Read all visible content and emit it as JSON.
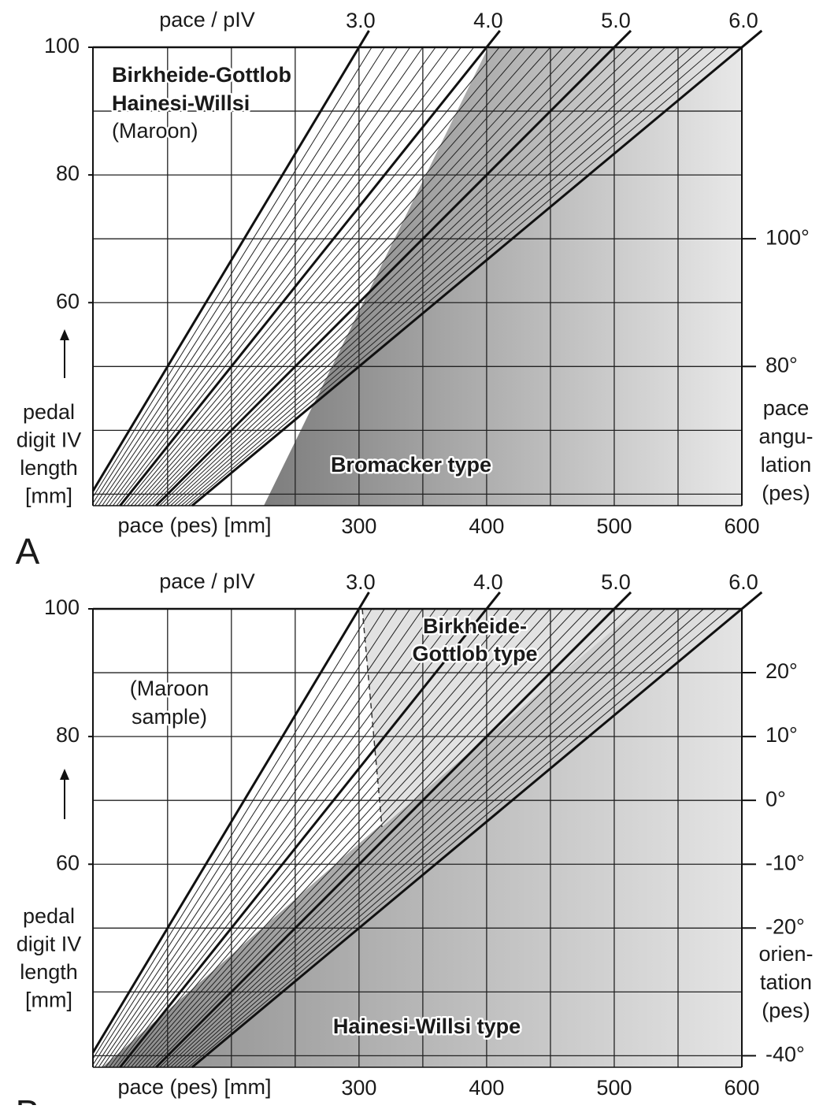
{
  "chart_data": [
    {
      "type": "line",
      "panel_label": "A",
      "top_axis_title": "pace / pIV",
      "ratio_lines": [
        {
          "value": 3,
          "label": "3.0"
        },
        {
          "value": 4,
          "label": "4.0"
        },
        {
          "value": 5,
          "label": "5.0"
        },
        {
          "value": 6,
          "label": "6.0"
        }
      ],
      "xlabel": "pace (pes) [mm]",
      "ylabel": [
        "pedal",
        "digit IV",
        "length",
        "[mm]"
      ],
      "y2label": [
        "pace",
        "angu-",
        "lation",
        "(pes)"
      ],
      "xlim": [
        91.5,
        600
      ],
      "ylim": [
        28.2,
        100
      ],
      "y2lim": [
        58.2,
        130
      ],
      "xticks": [
        300,
        400,
        500,
        600
      ],
      "yticks": [
        60,
        80,
        100
      ],
      "y2ticks": [
        {
          "value": 80,
          "label": "80°"
        },
        {
          "value": 100,
          "label": "100°"
        }
      ],
      "xgrid": [
        150,
        200,
        250,
        300,
        350,
        400,
        450,
        500,
        550
      ],
      "ygrid": [
        30,
        40,
        50,
        60,
        70,
        80,
        90
      ],
      "annotations": [
        "Birkheide-Gottlob",
        "Hainesi-Willsi",
        "(Maroon)",
        "Bromacker type"
      ]
    },
    {
      "type": "line",
      "panel_label": "B",
      "top_axis_title": "pace / pIV",
      "ratio_lines": [
        {
          "value": 3,
          "label": "3.0"
        },
        {
          "value": 4,
          "label": "4.0"
        },
        {
          "value": 5,
          "label": "5.0"
        },
        {
          "value": 6,
          "label": "6.0"
        }
      ],
      "xlabel": "pace (pes) [mm]",
      "ylabel": [
        "pedal",
        "digit IV",
        "length",
        "[mm]"
      ],
      "y2label": [
        "orien-",
        "tation",
        "(pes)"
      ],
      "xlim": [
        91.5,
        600
      ],
      "ylim": [
        28.2,
        100
      ],
      "y2lim": [
        -41.8,
        30
      ],
      "xticks": [
        300,
        400,
        500,
        600
      ],
      "yticks": [
        60,
        80,
        100
      ],
      "y2ticks": [
        {
          "value": 20,
          "label": "20°"
        },
        {
          "value": 10,
          "label": "10°"
        },
        {
          "value": 0,
          "label": "0°"
        },
        {
          "value": -10,
          "label": "-10°"
        },
        {
          "value": -20,
          "label": "-20°"
        },
        {
          "value": -40,
          "label": "-40°"
        }
      ],
      "xgrid": [
        150,
        200,
        250,
        300,
        350,
        400,
        450,
        500,
        550
      ],
      "ygrid": [
        30,
        40,
        50,
        60,
        70,
        80,
        90
      ],
      "annotations": [
        "Birkheide-",
        "Gottlob type",
        "(Maroon",
        "sample)",
        "Hainesi-Willsi type"
      ]
    }
  ]
}
